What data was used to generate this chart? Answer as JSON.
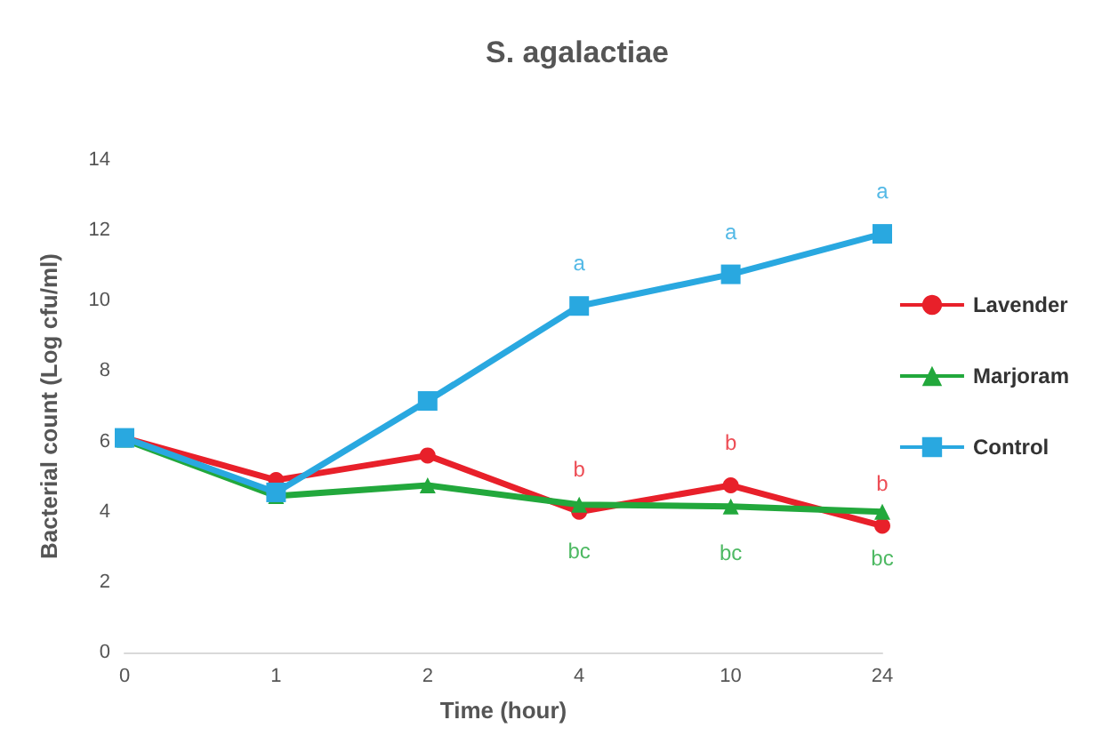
{
  "chart_data": {
    "type": "line",
    "title": "S. agalactiae",
    "xlabel": "Time (hour)",
    "ylabel": "Bacterial count (Log cfu/ml)",
    "categories": [
      "0",
      "1",
      "2",
      "4",
      "10",
      "24"
    ],
    "series": [
      {
        "name": "Lavender",
        "color": "#e8202a",
        "marker": "circle",
        "values": [
          6.1,
          4.9,
          5.6,
          4.0,
          4.75,
          3.6
        ]
      },
      {
        "name": "Marjoram",
        "color": "#22a83c",
        "marker": "triangle",
        "values": [
          6.05,
          4.45,
          4.75,
          4.2,
          4.15,
          4.0
        ]
      },
      {
        "name": "Control",
        "color": "#29a8e0",
        "marker": "square",
        "values": [
          6.1,
          4.55,
          7.15,
          9.85,
          10.75,
          11.9
        ]
      }
    ],
    "annotations": [
      {
        "text": "a",
        "x": "4",
        "y": 9.85
      },
      {
        "text": "a",
        "x": "10",
        "y": 10.75
      },
      {
        "text": "a",
        "x": "24",
        "y": 11.9
      },
      {
        "text": "b",
        "x": "4",
        "y": 4.0
      },
      {
        "text": "b",
        "x": "10",
        "y": 4.75
      },
      {
        "text": "b",
        "x": "24",
        "y": 3.6
      },
      {
        "text": "bc",
        "x": "4",
        "y": 4.2
      },
      {
        "text": "bc",
        "x": "10",
        "y": 4.15
      },
      {
        "text": "bc",
        "x": "24",
        "y": 4.0
      }
    ],
    "ylim": [
      0,
      14
    ],
    "yticks": [
      0,
      2,
      4,
      6,
      8,
      10,
      12,
      14
    ],
    "grid": false,
    "legend": "right"
  }
}
